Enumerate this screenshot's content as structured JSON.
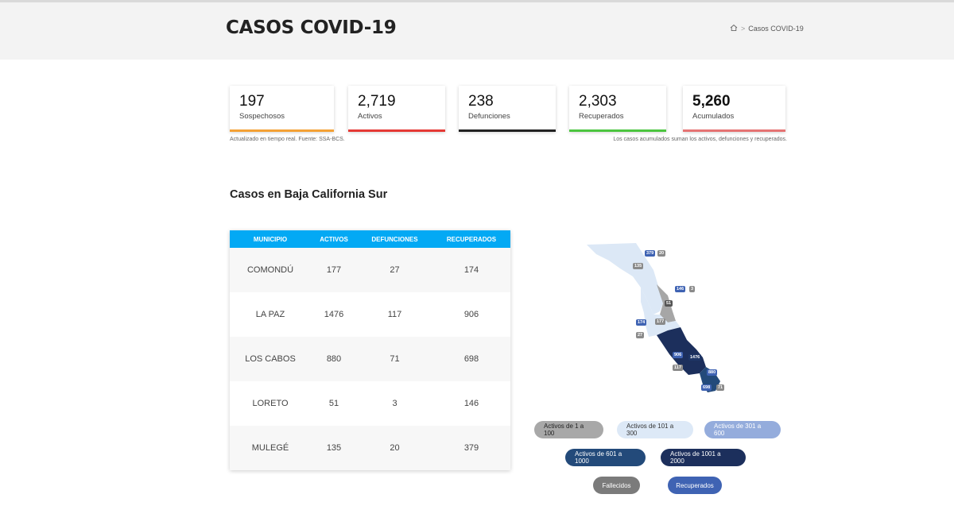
{
  "header": {
    "title": "CASOS COVID-19",
    "breadcrumb": {
      "home_icon": "home-icon",
      "separator": ">",
      "current": "Casos COVID-19"
    }
  },
  "stats": [
    {
      "value": "197",
      "label": "Sospechosos",
      "color": "#f4a135",
      "bold": false
    },
    {
      "value": "2,719",
      "label": "Activos",
      "color": "#e53935",
      "bold": false
    },
    {
      "value": "238",
      "label": "Defunciones",
      "color": "#222222",
      "bold": false
    },
    {
      "value": "2,303",
      "label": "Recuperados",
      "color": "#4cc53f",
      "bold": false
    },
    {
      "value": "5,260",
      "label": "Acumulados",
      "color": "#e57373",
      "bold": true
    }
  ],
  "notes": {
    "left": "Actualizado en tiempo real. Fuente: SSA-BCS.",
    "right": "Los casos acumulados suman los activos, defunciones y recuperados."
  },
  "section_title": "Casos en Baja California Sur",
  "table": {
    "headers": [
      "MUNICIPIO",
      "ACTIVOS",
      "DEFUNCIONES",
      "RECUPERADOS"
    ],
    "rows": [
      [
        "COMONDÚ",
        "177",
        "27",
        "174"
      ],
      [
        "LA PAZ",
        "1476",
        "117",
        "906"
      ],
      [
        "LOS CABOS",
        "880",
        "71",
        "698"
      ],
      [
        "LORETO",
        "51",
        "3",
        "146"
      ],
      [
        "MULEGÉ",
        "135",
        "20",
        "379"
      ]
    ]
  },
  "map_labels": [
    {
      "text": "379",
      "color": "#3f63b3"
    },
    {
      "text": "20",
      "color": "#8a8a8a"
    },
    {
      "text": "135",
      "color": "#8a8a8a"
    },
    {
      "text": "146",
      "color": "#3f63b3"
    },
    {
      "text": "3",
      "color": "#8a8a8a"
    },
    {
      "text": "51",
      "color": "#555555"
    },
    {
      "text": "174",
      "color": "#3f63b3"
    },
    {
      "text": "177",
      "color": "#8a8a8a"
    },
    {
      "text": "27",
      "color": "#8a8a8a"
    },
    {
      "text": "906",
      "color": "#3f63b3"
    },
    {
      "text": "1476",
      "color": "#1e3566"
    },
    {
      "text": "117",
      "color": "#8a8a8a"
    },
    {
      "text": "880",
      "color": "#3f63b3"
    },
    {
      "text": "698",
      "color": "#3f63b3"
    },
    {
      "text": "71",
      "color": "#8a8a8a"
    }
  ],
  "legend": [
    {
      "label": "Activos de 1 a 100",
      "bg": "#a8a8a8",
      "fg": "#222222"
    },
    {
      "label": "Activos de 101 a 300",
      "bg": "#dde9f7",
      "fg": "#333333"
    },
    {
      "label": "Activos de 301 a 600",
      "bg": "#94acdc",
      "fg": "#ffffff"
    },
    {
      "label": "Activos de 601 a 1000",
      "bg": "#234a7a",
      "fg": "#ffffff"
    },
    {
      "label": "Activos de 1001 a 2000",
      "bg": "#1c2f5c",
      "fg": "#ffffff"
    },
    {
      "label": "Fallecidos",
      "bg": "#7b7b7b",
      "fg": "#ffffff"
    },
    {
      "label": "Recuperados",
      "bg": "#3f63b3",
      "fg": "#ffffff"
    }
  ]
}
